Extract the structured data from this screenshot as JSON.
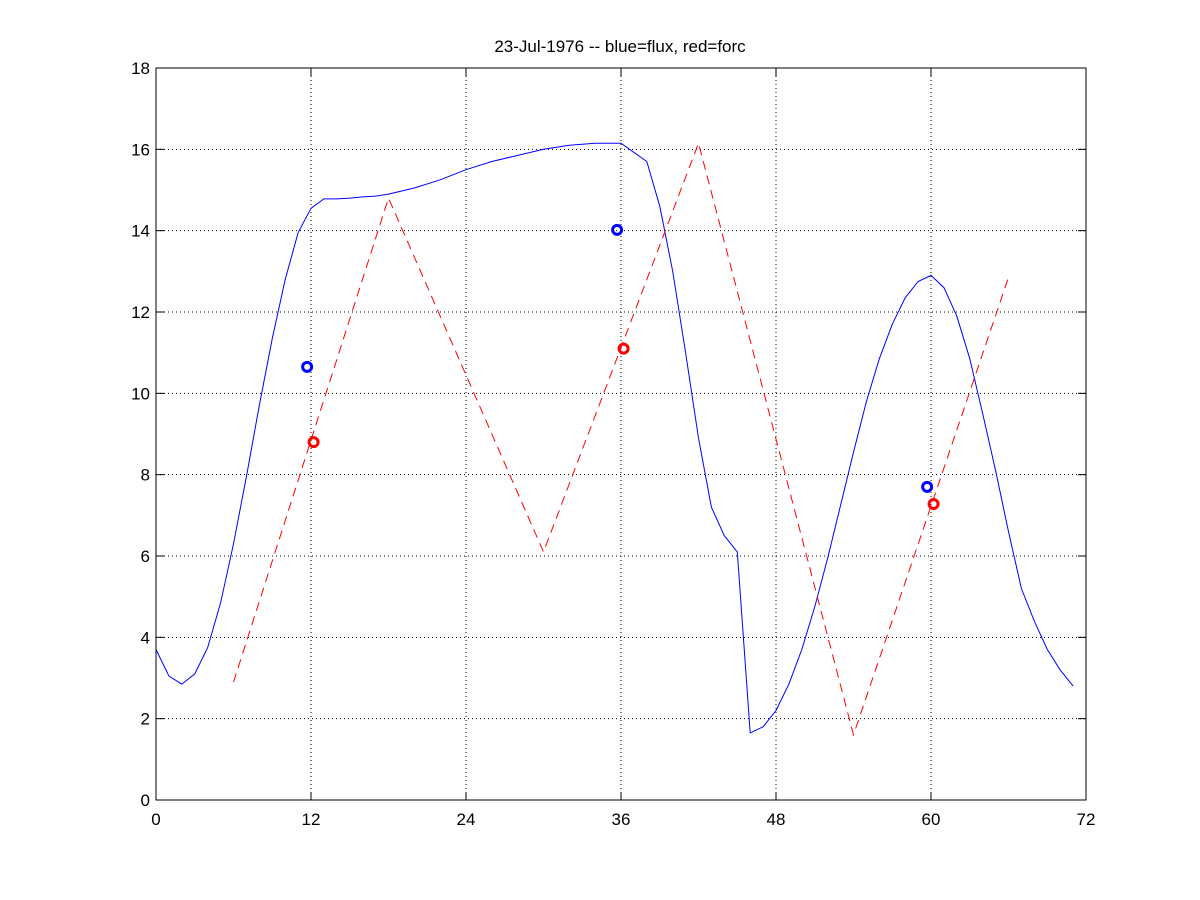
{
  "chart_data": {
    "type": "line",
    "title": "23-Jul-1976 -- blue=flux, red=forc",
    "xlabel": "",
    "ylabel": "",
    "xlim": [
      0,
      72
    ],
    "ylim": [
      0,
      18
    ],
    "x_ticks": [
      "0",
      "12",
      "24",
      "36",
      "48",
      "60",
      "72"
    ],
    "y_ticks": [
      "0",
      "2",
      "4",
      "6",
      "8",
      "10",
      "12",
      "14",
      "16",
      "18"
    ],
    "grid": true,
    "legend": "none",
    "series": [
      {
        "color": "#0000ff",
        "style": "solid",
        "x": [
          0,
          1,
          2,
          3,
          4,
          5,
          6,
          7,
          8,
          9,
          10,
          11,
          12,
          13,
          14,
          15,
          16,
          17,
          18,
          20,
          22,
          24,
          26,
          28,
          30,
          32,
          34,
          36,
          38,
          39,
          40,
          41,
          42,
          43,
          44,
          45,
          46,
          47,
          48,
          49,
          50,
          51,
          52,
          53,
          54,
          55,
          56,
          57,
          58,
          59,
          60,
          61,
          62,
          63,
          64,
          65,
          66,
          67,
          68,
          69,
          70,
          71
        ],
        "y": [
          3.7,
          3.05,
          2.85,
          3.1,
          3.75,
          4.85,
          6.3,
          7.95,
          9.7,
          11.35,
          12.8,
          13.95,
          14.55,
          14.78,
          14.78,
          14.8,
          14.83,
          14.85,
          14.9,
          15.05,
          15.25,
          15.5,
          15.7,
          15.85,
          16.0,
          16.1,
          16.15,
          16.15,
          15.7,
          14.6,
          13.0,
          11.0,
          8.9,
          7.2,
          6.5,
          6.1,
          1.65,
          1.8,
          2.2,
          2.85,
          3.7,
          4.75,
          5.95,
          7.25,
          8.55,
          9.8,
          10.85,
          11.7,
          12.35,
          12.75,
          12.9,
          12.6,
          11.9,
          10.85,
          9.5,
          8.1,
          6.6,
          5.2,
          4.4,
          3.7,
          3.2,
          2.8
        ]
      },
      {
        "color": "#ff0000",
        "style": "dashed",
        "x": [
          6,
          18,
          30,
          42,
          54,
          66
        ],
        "y": [
          2.9,
          14.8,
          6.1,
          16.15,
          1.6,
          12.85
        ]
      }
    ],
    "markers": [
      {
        "x": 11.7,
        "y": 10.65,
        "color": "#0000ff"
      },
      {
        "x": 12.2,
        "y": 8.8,
        "color": "#ff0000"
      },
      {
        "x": 35.7,
        "y": 14.02,
        "color": "#0000ff"
      },
      {
        "x": 36.2,
        "y": 11.1,
        "color": "#ff0000"
      },
      {
        "x": 59.7,
        "y": 7.7,
        "color": "#0000ff"
      },
      {
        "x": 60.2,
        "y": 7.28,
        "color": "#ff0000"
      }
    ]
  }
}
